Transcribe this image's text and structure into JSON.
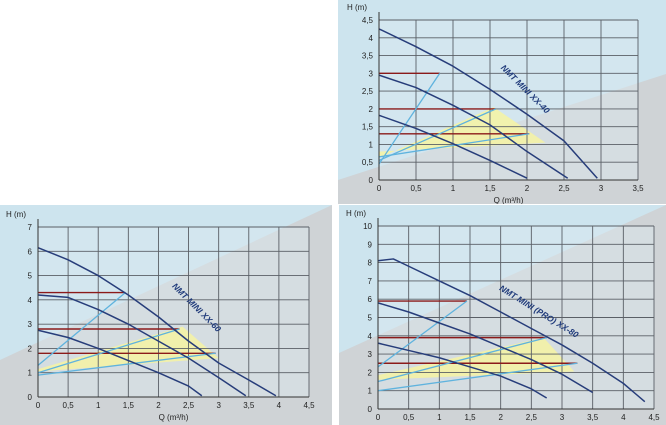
{
  "chart_data": [
    {
      "type": "line",
      "ylabel": "H (m)",
      "xlabel": "Q (m³/h)",
      "xlim": [
        0,
        3.5
      ],
      "ylim": [
        0,
        4.5
      ],
      "x_ticks": [
        "0",
        "0,5",
        "1",
        "1,5",
        "2",
        "2,5",
        "3",
        "3,5"
      ],
      "y_ticks": [
        "0",
        "0,5",
        "1",
        "1,5",
        "2",
        "2,5",
        "3",
        "3,5",
        "4",
        "4,5"
      ],
      "grid": true,
      "curve_label": "NMT MINI XX-40",
      "series": [
        {
          "points": [
            [
              0,
              4.25
            ],
            [
              0.5,
              3.75
            ],
            [
              1,
              3.2
            ],
            [
              1.5,
              2.55
            ],
            [
              2,
              1.85
            ],
            [
              2.5,
              1.1
            ],
            [
              2.95,
              0.05
            ]
          ]
        },
        {
          "points": [
            [
              0,
              2.95
            ],
            [
              0.5,
              2.6
            ],
            [
              1,
              2.1
            ],
            [
              1.5,
              1.55
            ],
            [
              2,
              0.8
            ],
            [
              2.55,
              0.05
            ]
          ]
        },
        {
          "points": [
            [
              0,
              1.82
            ],
            [
              0.5,
              1.45
            ],
            [
              1,
              1.02
            ],
            [
              1.5,
              0.55
            ],
            [
              2,
              0.05
            ]
          ]
        }
      ],
      "constant_pressure_lines": [
        {
          "y": 3.0,
          "x_end": 0.82
        },
        {
          "y": 2.0,
          "x_end": 1.58
        },
        {
          "y": 1.3,
          "x_end": 2.03
        }
      ],
      "system_curves": [
        {
          "points": [
            [
              0,
              0.45
            ],
            [
              0.82,
              3.0
            ]
          ]
        },
        {
          "points": [
            [
              0,
              0.55
            ],
            [
              1.58,
              2.0
            ]
          ]
        },
        {
          "points": [
            [
              0,
              0.65
            ],
            [
              2.03,
              1.3
            ]
          ]
        }
      ],
      "operating_region": [
        [
          0,
          0.62
        ],
        [
          1.55,
          2.05
        ],
        [
          2.25,
          1.05
        ],
        [
          0,
          0.8
        ]
      ]
    },
    {
      "type": "line",
      "ylabel": "H (m)",
      "xlabel": "Q (m³/h)",
      "xlim": [
        0,
        4.5
      ],
      "ylim": [
        0,
        7
      ],
      "x_ticks": [
        "0",
        "0,5",
        "1",
        "1,5",
        "2",
        "2,5",
        "3",
        "3,5",
        "4",
        "4,5"
      ],
      "y_ticks": [
        "0",
        "1",
        "2",
        "3",
        "4",
        "5",
        "6",
        "7"
      ],
      "grid": true,
      "curve_label": "NMT MINI XX-60",
      "series": [
        {
          "points": [
            [
              0,
              6.15
            ],
            [
              0.5,
              5.65
            ],
            [
              1,
              5.0
            ],
            [
              1.5,
              4.2
            ],
            [
              2,
              3.3
            ],
            [
              2.5,
              2.3
            ],
            [
              3,
              1.4
            ],
            [
              3.5,
              0.7
            ],
            [
              3.95,
              0.05
            ]
          ]
        },
        {
          "points": [
            [
              0,
              4.2
            ],
            [
              0.5,
              4.1
            ],
            [
              1,
              3.6
            ],
            [
              1.5,
              3.0
            ],
            [
              2,
              2.3
            ],
            [
              2.5,
              1.6
            ],
            [
              3,
              0.8
            ],
            [
              3.45,
              0.05
            ]
          ]
        },
        {
          "points": [
            [
              0,
              2.75
            ],
            [
              0.5,
              2.45
            ],
            [
              1,
              2.0
            ],
            [
              1.5,
              1.5
            ],
            [
              2,
              1.0
            ],
            [
              2.5,
              0.45
            ],
            [
              2.72,
              0.05
            ]
          ]
        }
      ],
      "constant_pressure_lines": [
        {
          "y": 4.3,
          "x_end": 1.45
        },
        {
          "y": 2.8,
          "x_end": 2.35
        },
        {
          "y": 1.8,
          "x_end": 2.95
        }
      ],
      "system_curves": [
        {
          "points": [
            [
              0,
              1.3
            ],
            [
              1.45,
              4.3
            ]
          ]
        },
        {
          "points": [
            [
              0,
              1.0
            ],
            [
              2.35,
              2.8
            ]
          ]
        },
        {
          "points": [
            [
              0,
              0.9
            ],
            [
              2.95,
              1.8
            ]
          ]
        }
      ],
      "operating_region": [
        [
          0,
          1.15
        ],
        [
          2.4,
          2.9
        ],
        [
          3.0,
          1.6
        ],
        [
          0,
          1.05
        ]
      ]
    },
    {
      "type": "line",
      "ylabel": "H (m)",
      "xlabel": "Q (m³/h)",
      "xlim": [
        0,
        4.5
      ],
      "ylim": [
        0,
        10
      ],
      "x_ticks": [
        "0",
        "0,5",
        "1",
        "1,5",
        "2",
        "2,5",
        "3",
        "3,5",
        "4",
        "4,5"
      ],
      "y_ticks": [
        "0",
        "1",
        "2",
        "3",
        "4",
        "5",
        "6",
        "7",
        "8",
        "9",
        "10"
      ],
      "grid": true,
      "curve_label": "NMT MINI (PRO) XX-80",
      "series": [
        {
          "points": [
            [
              0,
              8.1
            ],
            [
              0.25,
              8.2
            ],
            [
              0.5,
              7.8
            ],
            [
              1,
              7.0
            ],
            [
              1.5,
              6.2
            ],
            [
              2,
              5.3
            ],
            [
              2.5,
              4.4
            ],
            [
              3,
              3.5
            ],
            [
              3.5,
              2.5
            ],
            [
              4,
              1.4
            ],
            [
              4.35,
              0.4
            ]
          ]
        },
        {
          "points": [
            [
              0,
              5.8
            ],
            [
              0.5,
              5.3
            ],
            [
              1,
              4.7
            ],
            [
              1.5,
              4.1
            ],
            [
              2,
              3.4
            ],
            [
              2.5,
              2.7
            ],
            [
              3,
              1.9
            ],
            [
              3.5,
              0.9
            ]
          ]
        },
        {
          "points": [
            [
              0,
              3.6
            ],
            [
              0.5,
              3.2
            ],
            [
              1,
              2.8
            ],
            [
              1.5,
              2.3
            ],
            [
              2,
              1.8
            ],
            [
              2.5,
              1.1
            ],
            [
              2.75,
              0.6
            ]
          ]
        }
      ],
      "constant_pressure_lines": [
        {
          "y": 5.9,
          "x_end": 1.45
        },
        {
          "y": 3.9,
          "x_end": 2.75
        },
        {
          "y": 2.5,
          "x_end": 3.25
        }
      ],
      "system_curves": [
        {
          "points": [
            [
              0,
              2.3
            ],
            [
              1.45,
              5.9
            ]
          ]
        },
        {
          "points": [
            [
              0,
              1.5
            ],
            [
              2.75,
              3.9
            ]
          ]
        },
        {
          "points": [
            [
              0,
              1.0
            ],
            [
              3.25,
              2.5
            ]
          ]
        }
      ],
      "operating_region": [
        [
          0,
          1.85
        ],
        [
          2.7,
          3.9
        ],
        [
          3.2,
          2.05
        ],
        [
          0,
          1.6
        ]
      ]
    }
  ]
}
